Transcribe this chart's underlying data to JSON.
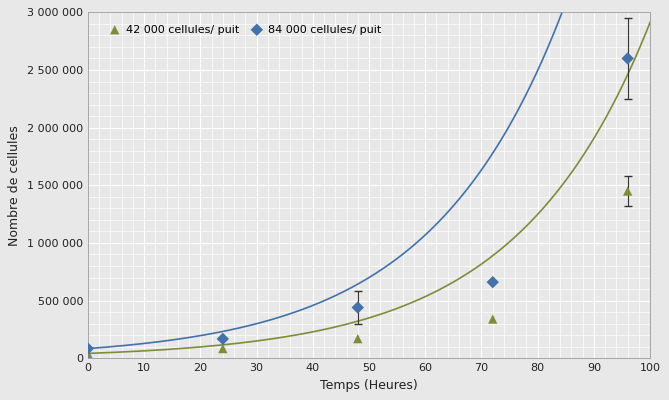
{
  "title": "",
  "xlabel": "Temps (Heures)",
  "ylabel": "Nombre de cellules",
  "xlim": [
    0,
    100
  ],
  "ylim": [
    0,
    3000000
  ],
  "yticks": [
    0,
    500000,
    1000000,
    1500000,
    2000000,
    2500000,
    3000000
  ],
  "xticks": [
    0,
    10,
    20,
    30,
    40,
    50,
    60,
    70,
    80,
    90,
    100
  ],
  "series42_x": [
    0,
    24,
    48,
    72,
    96
  ],
  "series42_y": [
    42000,
    84000,
    170000,
    340000,
    1450000
  ],
  "series42_yerr": [
    0,
    0,
    0,
    0,
    130000
  ],
  "series42_color": "#7f8c3b",
  "series42_label": "42 000 cellules/ puit",
  "series84_x": [
    0,
    24,
    48,
    72,
    96
  ],
  "series84_y": [
    84000,
    168000,
    440000,
    660000,
    2600000
  ],
  "series84_yerr": [
    0,
    0,
    140000,
    0,
    350000
  ],
  "series84_color": "#4472a8",
  "series84_label": "84 000 cellules/ puit",
  "curve42_A": 42000,
  "curve42_r": 0.0424,
  "curve84_A": 84000,
  "curve84_r": 0.0424,
  "background_color": "#e8e8e8",
  "grid_color": "#ffffff",
  "font_color": "#222222"
}
